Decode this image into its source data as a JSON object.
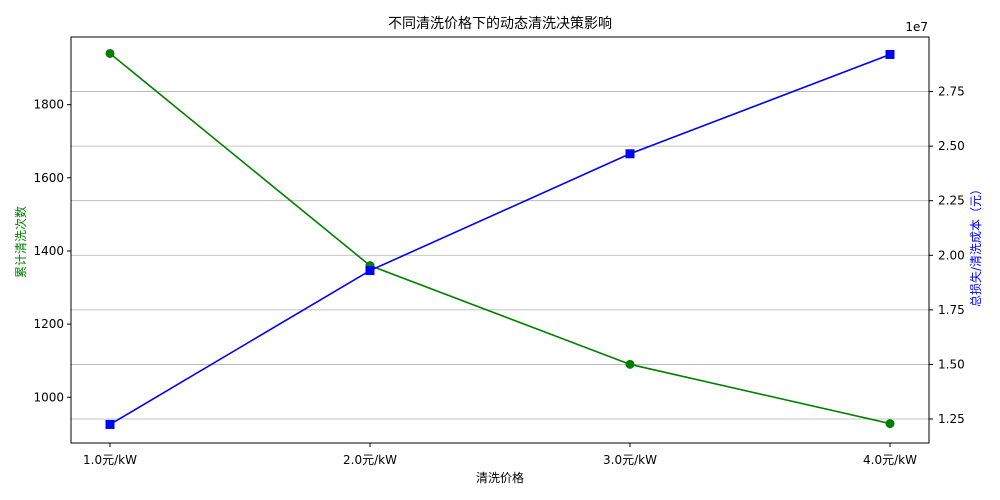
{
  "chart_data": {
    "type": "line",
    "title": "不同清洗价格下的动态清洗决策影响",
    "xlabel": "清洗价格",
    "ylabel_left": "累计清洗次数",
    "ylabel_right": "总损失/清洗成本（元）",
    "right_axis_multiplier": "1e7",
    "categories": [
      "1.0元/kW",
      "2.0元/kW",
      "3.0元/kW",
      "4.0元/kW"
    ],
    "y_left_ticks": [
      "1000",
      "1200",
      "1400",
      "1600",
      "1800"
    ],
    "y_right_ticks": [
      "1.25",
      "1.50",
      "1.75",
      "2.00",
      "2.25",
      "2.50",
      "2.75"
    ],
    "y_left_range": [
      875,
      1985
    ],
    "y_right_range": [
      11400000,
      30000000
    ],
    "grid": "right-axis horizontal lines",
    "series": [
      {
        "axis": "left",
        "color": "#008000",
        "marker": "circle",
        "values": [
          1940,
          1360,
          1090,
          928
        ]
      },
      {
        "axis": "right",
        "color": "#0000ff",
        "marker": "square",
        "values": [
          12250000,
          19300000,
          24650000,
          29200000
        ]
      }
    ]
  }
}
